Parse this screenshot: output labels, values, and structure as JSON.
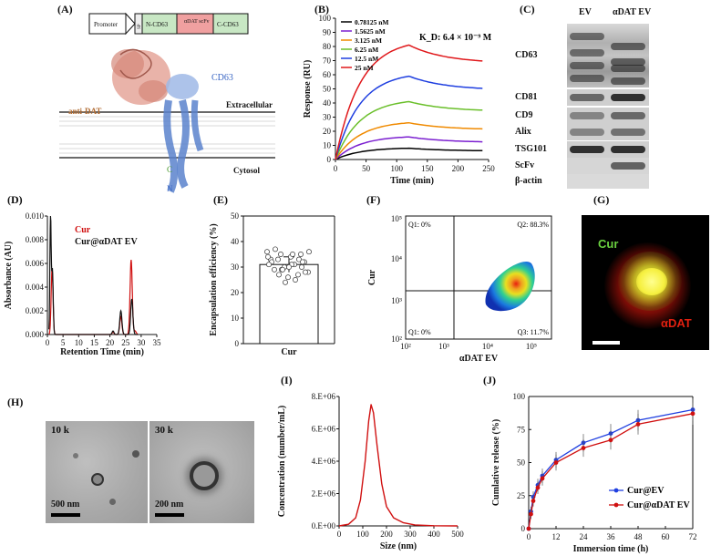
{
  "panels": [
    "(A)",
    "(B)",
    "(C)",
    "(D)",
    "(E)",
    "(F)",
    "(G)",
    "(H)",
    "(I)",
    "(J)"
  ],
  "panelA": {
    "construct": [
      "Promoter",
      "SP",
      "N-CD63",
      "αDAT scFv",
      "C-CD63"
    ],
    "labels": {
      "antidat": "anti-DAT",
      "cd63": "CD63",
      "extracellular": "Extracellular",
      "cytosol": "Cytosol",
      "c": "C",
      "n": "N"
    }
  },
  "panelC": {
    "columns": [
      "EV",
      "αDAT EV"
    ],
    "rows": [
      "CD63",
      "CD81",
      "CD9",
      "Alix",
      "TSG101",
      "ScFv",
      "β-actin"
    ]
  },
  "panelF": {
    "q1": "Q1: 0%",
    "q2": "Q2: 88.3%",
    "q3": "Q1: 0%",
    "q4": "Q3: 11.7%",
    "xlabel": "αDAT EV",
    "ylabel": "Cur",
    "xticks": [
      "10²",
      "10³",
      "10⁴",
      "10⁵"
    ],
    "yticks": [
      "10²",
      "10³",
      "10⁴",
      "10⁵"
    ]
  },
  "panelG": {
    "cur": "Cur",
    "adat": "αDAT"
  },
  "panelH": {
    "mag1": "10 k",
    "mag2": "30 k",
    "scale1": "500 nm",
    "scale2": "200 nm"
  },
  "chart_data": [
    {
      "id": "B",
      "type": "line",
      "xlabel": "Time (min)",
      "ylabel": "Response (RU)",
      "xlim": [
        0,
        250
      ],
      "ylim": [
        0,
        100
      ],
      "xticks": [
        0,
        50,
        100,
        150,
        200,
        250
      ],
      "yticks": [
        0,
        10,
        20,
        30,
        40,
        50,
        60,
        70,
        80,
        90,
        100
      ],
      "annotation": "K_D: 6.4 × 10⁻⁹ M",
      "legend": "top-left",
      "series": [
        {
          "name": "0.78125 nM",
          "color": "#000000",
          "peak": 8,
          "end": 6
        },
        {
          "name": "1.5625 nM",
          "color": "#7b1fd0",
          "peak": 16,
          "end": 12
        },
        {
          "name": "3.125 nM",
          "color": "#f08a00",
          "peak": 26,
          "end": 21
        },
        {
          "name": "6.25 nM",
          "color": "#6abf2a",
          "peak": 41,
          "end": 34
        },
        {
          "name": "12.5 nM",
          "color": "#1f3fe0",
          "peak": 59,
          "end": 49
        },
        {
          "name": "25 nM",
          "color": "#e0181b",
          "peak": 81,
          "end": 68
        }
      ]
    },
    {
      "id": "D",
      "type": "line",
      "xlabel": "Retention Time (min)",
      "ylabel": "Absorbance (AU)",
      "xlim": [
        0,
        35
      ],
      "ylim": [
        0,
        0.01
      ],
      "xticks": [
        0,
        5,
        10,
        15,
        20,
        25,
        30,
        35
      ],
      "yticks": [
        "0.000",
        "0.002",
        "0.004",
        "0.006",
        "0.008",
        "0.010"
      ],
      "legend": "top-right",
      "series": [
        {
          "name": "Cur",
          "color": "#d01010"
        },
        {
          "name": "Cur@αDAT EV",
          "color": "#111111"
        }
      ]
    },
    {
      "id": "E",
      "type": "bar",
      "categories": [
        "Cur"
      ],
      "values": [
        31
      ],
      "ylabel": "Encapsulation efficiency (%)",
      "ylim": [
        0,
        50
      ],
      "yticks": [
        0,
        10,
        20,
        30,
        40,
        50
      ]
    },
    {
      "id": "I",
      "type": "line",
      "xlabel": "Size (nm)",
      "ylabel": "Concentration (number/mL)",
      "xlim": [
        0,
        500
      ],
      "ylim": [
        0,
        8000000
      ],
      "xticks": [
        0,
        100,
        200,
        300,
        400,
        500
      ],
      "yticks": [
        "0.E+00",
        "2.E+06",
        "4.E+06",
        "6.E+06",
        "8.E+06"
      ],
      "series": [
        {
          "name": "",
          "color": "#d01010",
          "x": [
            0,
            40,
            70,
            90,
            110,
            125,
            135,
            145,
            160,
            180,
            200,
            230,
            270,
            320,
            400,
            500
          ],
          "y": [
            0,
            100000,
            500000,
            1600000,
            4000000,
            6500000,
            7500000,
            7000000,
            5000000,
            2600000,
            1200000,
            500000,
            200000,
            60000,
            10000,
            0
          ]
        }
      ]
    },
    {
      "id": "J",
      "type": "line",
      "xlabel": "Immersion time (h)",
      "ylabel": "Cumlative release (%)",
      "xlim": [
        0,
        72
      ],
      "ylim": [
        0,
        100
      ],
      "xticks": [
        0,
        12,
        24,
        36,
        48,
        60,
        72
      ],
      "yticks": [
        0,
        25,
        50,
        75,
        100
      ],
      "legend": "bottom-right",
      "series": [
        {
          "name": "Cur@EV",
          "color": "#1f3fe0",
          "x": [
            0,
            1,
            2,
            4,
            6,
            12,
            24,
            36,
            48,
            72
          ],
          "y": [
            0,
            13,
            24,
            33,
            40,
            52,
            65,
            72,
            82,
            90
          ]
        },
        {
          "name": "Cur@αDAT EV",
          "color": "#d01010",
          "x": [
            0,
            1,
            2,
            4,
            6,
            12,
            24,
            36,
            48,
            72
          ],
          "y": [
            0,
            11,
            21,
            31,
            38,
            50,
            61,
            67,
            79,
            87
          ]
        }
      ]
    }
  ]
}
